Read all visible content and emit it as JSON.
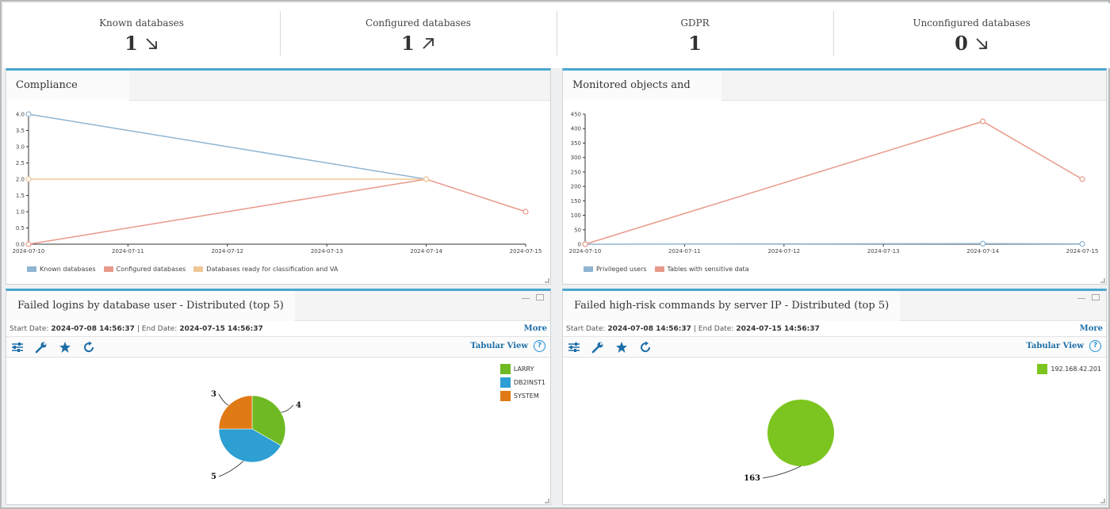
{
  "stats": [
    {
      "label": "Known databases",
      "value": "1",
      "trend": "down"
    },
    {
      "label": "Configured databases",
      "value": "1",
      "trend": "up"
    },
    {
      "label": "GDPR",
      "value": "1",
      "trend": "none"
    },
    {
      "label": "Unconfigured databases",
      "value": "0",
      "trend": "down"
    }
  ],
  "compliance": {
    "title": "Compliance progress",
    "chart_data": {
      "type": "line",
      "x": [
        "2024-07-10",
        "2024-07-11",
        "2024-07-12",
        "2024-07-13",
        "2024-07-14",
        "2024-07-15"
      ],
      "ylim": [
        0,
        4
      ],
      "yticks": [
        "0.0",
        "0.5",
        "1.0",
        "1.5",
        "2.0",
        "2.5",
        "3.0",
        "3.5",
        "4.0"
      ],
      "series": [
        {
          "name": "Known databases",
          "color": "#8fb5d2",
          "points": [
            [
              "2024-07-10",
              4.0
            ],
            [
              "2024-07-14",
              2.0
            ]
          ]
        },
        {
          "name": "Configured databases",
          "color": "#e89a8a",
          "points": [
            [
              "2024-07-10",
              0.0
            ],
            [
              "2024-07-14",
              2.0
            ],
            [
              "2024-07-15",
              1.0
            ]
          ]
        },
        {
          "name": "Databases ready for classification and VA",
          "color": "#efc795",
          "points": [
            [
              "2024-07-10",
              2.0
            ],
            [
              "2024-07-14",
              2.0
            ]
          ]
        }
      ]
    }
  },
  "monitored": {
    "title": "Monitored objects and users",
    "chart_data": {
      "type": "line",
      "x": [
        "2024-07-10",
        "2024-07-11",
        "2024-07-12",
        "2024-07-13",
        "2024-07-14",
        "2024-07-15"
      ],
      "ylim": [
        0,
        450
      ],
      "yticks": [
        "0",
        "50",
        "100",
        "150",
        "200",
        "250",
        "300",
        "350",
        "400",
        "450"
      ],
      "series": [
        {
          "name": "Privileged users",
          "color": "#8fb5d2",
          "points": [
            [
              "2024-07-10",
              0
            ],
            [
              "2024-07-14",
              2
            ],
            [
              "2024-07-15",
              1
            ]
          ]
        },
        {
          "name": "Tables with sensitive data",
          "color": "#e89a8a",
          "points": [
            [
              "2024-07-10",
              0
            ],
            [
              "2024-07-14",
              425
            ],
            [
              "2024-07-15",
              225
            ]
          ]
        }
      ]
    }
  },
  "failed_logins": {
    "title": "Failed logins by database user - Distributed (top 5)",
    "start_label": "Start Date:",
    "start_value": "2024-07-08 14:56:37",
    "sep": "|",
    "end_label": "End Date:",
    "end_value": "2024-07-15 14:56:37",
    "more": "More",
    "tabular": "Tabular View",
    "help": "?",
    "chart_data": {
      "type": "pie",
      "slices": [
        {
          "label": "LARRY",
          "value": 4,
          "color": "#6fba24"
        },
        {
          "label": "DB2INST1",
          "value": 5,
          "color": "#2d9fd3"
        },
        {
          "label": "SYSTEM",
          "value": 3,
          "color": "#e07a14"
        }
      ]
    }
  },
  "failed_commands": {
    "title": "Failed high-risk commands by server IP - Distributed (top 5)",
    "start_label": "Start Date:",
    "start_value": "2024-07-08 14:56:37",
    "sep": "|",
    "end_label": "End Date:",
    "end_value": "2024-07-15 14:56:37",
    "more": "More",
    "tabular": "Tabular View",
    "help": "?",
    "chart_data": {
      "type": "pie",
      "slices": [
        {
          "label": "192.168.42.201",
          "value": 163,
          "color": "#7cc520"
        }
      ]
    }
  }
}
